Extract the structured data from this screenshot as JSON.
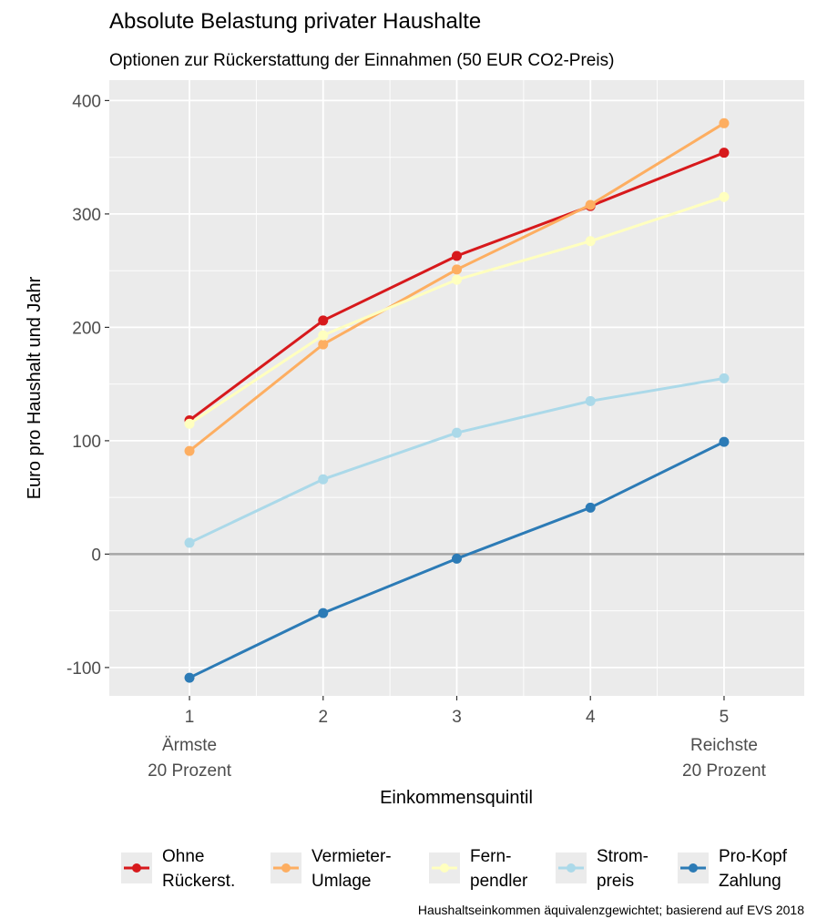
{
  "chart_data": {
    "type": "line",
    "title": "Absolute Belastung privater Haushalte",
    "subtitle": "Optionen zur Rückerstattung der Einnahmen (50 EUR CO2-Preis)",
    "xlabel": "Einkommensquintil",
    "ylabel": "Euro pro Haushalt und Jahr",
    "caption": "Haushaltseinkommen äquivalenzgewichtet; basierend auf EVS 2018",
    "x": [
      1,
      2,
      3,
      4,
      5
    ],
    "x_tick_labels": [
      "1",
      "2",
      "3",
      "4",
      "5"
    ],
    "x_tick_sublabels": [
      {
        "x": 1,
        "lines": [
          "Ärmste",
          "20 Prozent"
        ]
      },
      {
        "x": 5,
        "lines": [
          "Reichste",
          "20 Prozent"
        ]
      }
    ],
    "xlim": [
      0.4,
      5.6
    ],
    "y_ticks": [
      -100,
      0,
      100,
      200,
      300,
      400
    ],
    "ylim": [
      -125,
      418
    ],
    "grid": true,
    "zero_line": true,
    "legend_position": "bottom",
    "series": [
      {
        "name": "Ohne Rückerst.",
        "legend_lines": [
          "Ohne",
          "Rückerst."
        ],
        "color": "#d7191c",
        "values": [
          118,
          206,
          263,
          307,
          354
        ]
      },
      {
        "name": "Vermieter-Umlage",
        "legend_lines": [
          "Vermieter-",
          "Umlage"
        ],
        "color": "#fdae61",
        "values": [
          91,
          185,
          251,
          308,
          380
        ]
      },
      {
        "name": "Fern-pendler",
        "legend_lines": [
          "Fern-",
          "pendler"
        ],
        "color": "#ffffbf",
        "values": [
          115,
          193,
          242,
          276,
          315
        ]
      },
      {
        "name": "Strom-preis",
        "legend_lines": [
          "Strom-",
          "preis"
        ],
        "color": "#abd9e9",
        "values": [
          10,
          66,
          107,
          135,
          155
        ]
      },
      {
        "name": "Pro-Kopf Zahlung",
        "legend_lines": [
          "Pro-Kopf",
          "Zahlung"
        ],
        "color": "#2c7bb6",
        "values": [
          -109,
          -52,
          -4,
          41,
          99
        ]
      }
    ]
  }
}
